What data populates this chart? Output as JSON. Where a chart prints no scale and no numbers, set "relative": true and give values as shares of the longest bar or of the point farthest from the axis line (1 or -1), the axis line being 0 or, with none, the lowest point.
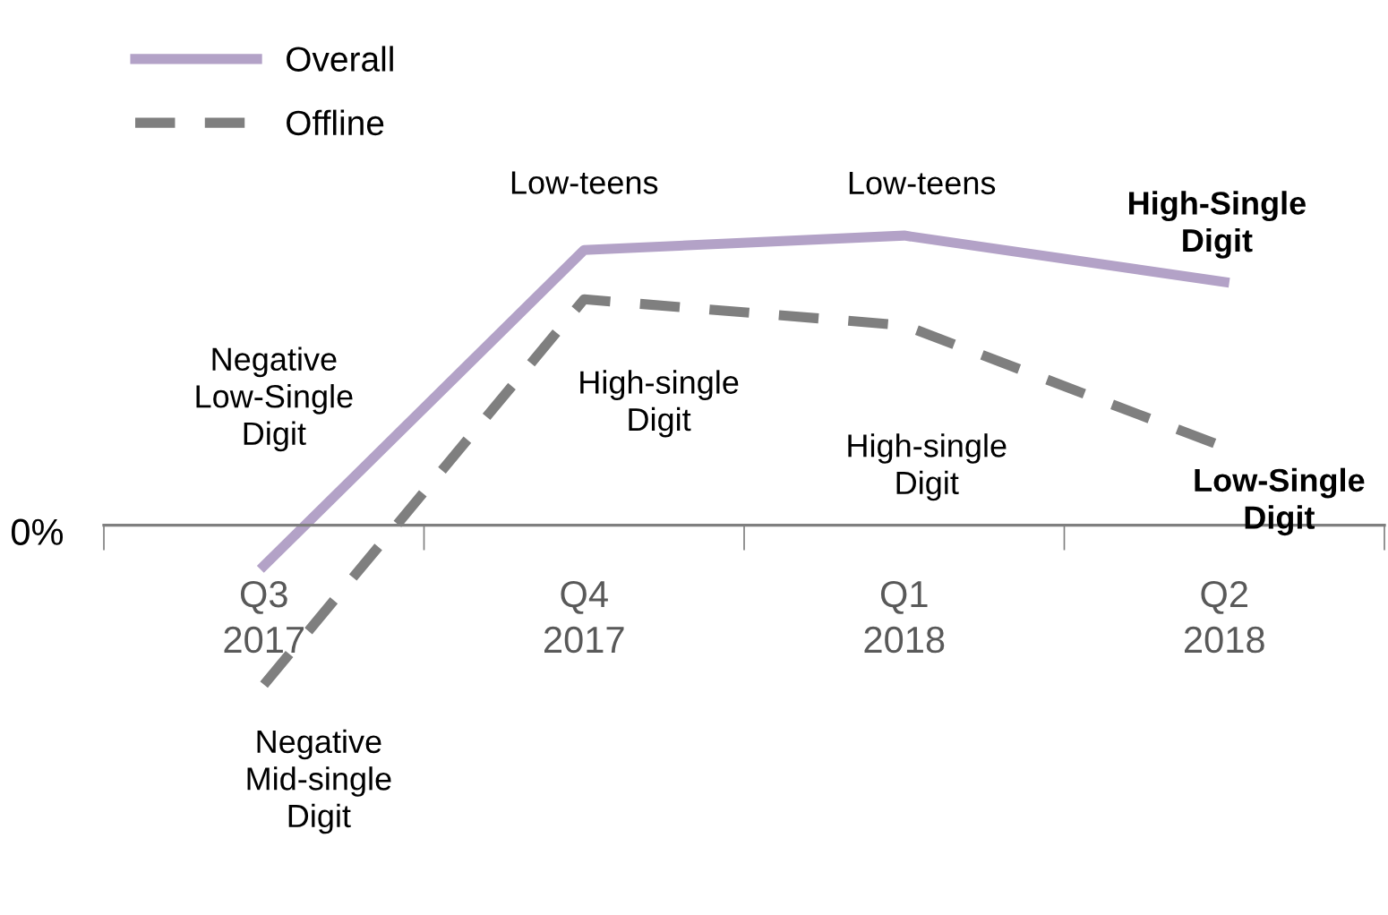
{
  "chart_data": {
    "type": "line",
    "relative": true,
    "categories": [
      "Q3\n2017",
      "Q4\n2017",
      "Q1\n2018",
      "Q2\n2018"
    ],
    "series": [
      {
        "name": "Overall",
        "color": "#b3a2c7",
        "line_style": "solid",
        "values": [
          -0.14,
          0.95,
          1,
          0.84
        ]
      },
      {
        "name": "Offline",
        "color": "#7f7f7f",
        "line_style": "dashed",
        "values": [
          -0.55,
          0.78,
          0.69,
          0.27
        ]
      }
    ],
    "annotations": [
      "0%",
      "Negative\nLow-Single\nDigit",
      "Low-teens",
      "Low-teens",
      "High-Single\nDigit",
      "Negative\nMid-single\nDigit",
      "High-single\nDigit",
      "High-single\nDigit",
      "Low-Single\nDigit"
    ],
    "legend": "top left",
    "grid": false,
    "marker": "none"
  }
}
